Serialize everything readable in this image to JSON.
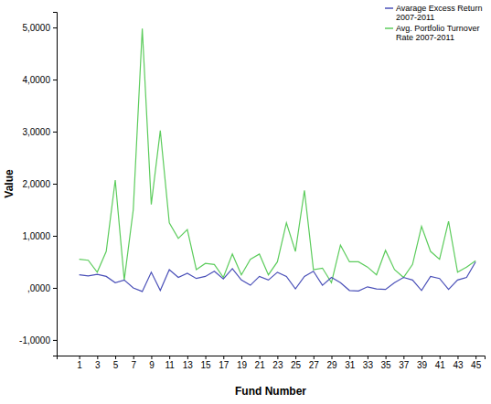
{
  "chart_data": {
    "type": "line",
    "x_label": "Fund Number",
    "y_label": "Value",
    "x": [
      1,
      2,
      3,
      4,
      5,
      6,
      7,
      8,
      9,
      10,
      11,
      12,
      13,
      14,
      15,
      16,
      17,
      18,
      19,
      20,
      21,
      22,
      23,
      24,
      25,
      26,
      27,
      28,
      29,
      30,
      31,
      32,
      33,
      34,
      35,
      36,
      37,
      38,
      39,
      40,
      41,
      42,
      43,
      44,
      45
    ],
    "series": [
      {
        "name": "Avarage Excess Return 2007-2011",
        "color": "#4a50b8",
        "values": [
          0.25,
          0.23,
          0.26,
          0.22,
          0.1,
          0.15,
          0.0,
          -0.07,
          0.3,
          -0.05,
          0.35,
          0.2,
          0.28,
          0.18,
          0.22,
          0.32,
          0.17,
          0.37,
          0.15,
          0.05,
          0.22,
          0.15,
          0.3,
          0.22,
          -0.02,
          0.22,
          0.32,
          0.05,
          0.2,
          0.1,
          -0.05,
          -0.06,
          0.02,
          -0.02,
          -0.03,
          0.1,
          0.2,
          0.15,
          -0.05,
          0.22,
          0.18,
          -0.03,
          0.15,
          0.2,
          0.5
        ]
      },
      {
        "name": "Avg. Portfolio Turnover Rate 2007-2011",
        "color": "#5ccc5c",
        "values": [
          0.55,
          0.53,
          0.3,
          0.7,
          2.07,
          0.15,
          1.5,
          4.98,
          1.6,
          3.02,
          1.25,
          0.95,
          1.12,
          0.35,
          0.47,
          0.45,
          0.2,
          0.65,
          0.25,
          0.55,
          0.65,
          0.25,
          0.5,
          1.25,
          0.7,
          1.87,
          0.35,
          0.38,
          0.1,
          0.82,
          0.5,
          0.5,
          0.4,
          0.25,
          0.72,
          0.35,
          0.2,
          0.45,
          1.18,
          0.7,
          0.55,
          1.28,
          0.3,
          0.4,
          0.52
        ]
      }
    ],
    "xlim": [
      -1.5,
      46
    ],
    "xticks": [
      1,
      3,
      5,
      7,
      9,
      11,
      13,
      15,
      17,
      19,
      21,
      23,
      25,
      27,
      29,
      31,
      33,
      35,
      37,
      39,
      41,
      43,
      45
    ],
    "ylim": [
      -1.3,
      5.3
    ],
    "yticks": [
      {
        "value": -1,
        "label": "-1,0000"
      },
      {
        "value": 0,
        "label": ",0000"
      },
      {
        "value": 1,
        "label": "1,0000"
      },
      {
        "value": 2,
        "label": "2,0000"
      },
      {
        "value": 3,
        "label": "3,0000"
      },
      {
        "value": 4,
        "label": "4,0000"
      },
      {
        "value": 5,
        "label": "5,0000"
      }
    ],
    "grid": false,
    "legend": "top-right"
  }
}
